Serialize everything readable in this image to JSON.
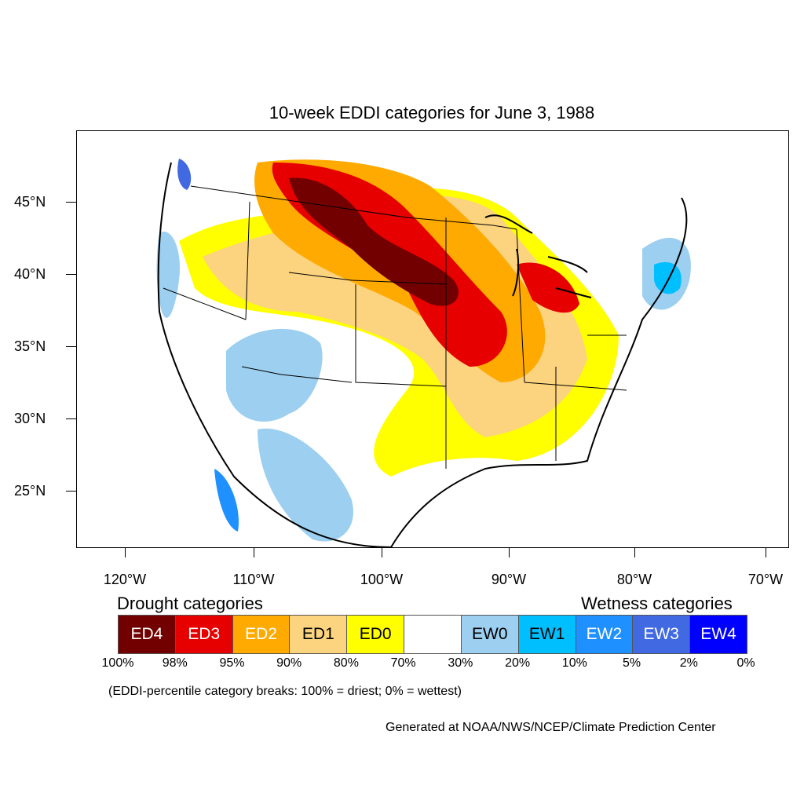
{
  "title": "10-week EDDI categories for June 3, 1988",
  "map": {
    "lat_labels": [
      "45°N",
      "40°N",
      "35°N",
      "30°N",
      "25°N"
    ],
    "lon_labels": [
      "120°W",
      "110°W",
      "100°W",
      "90°W",
      "80°W",
      "70°W"
    ],
    "lat_range": [
      21,
      49.5
    ],
    "lon_range": [
      -124,
      -68
    ]
  },
  "legend": {
    "drought_heading": "Drought categories",
    "wetness_heading": "Wetness categories",
    "categories": [
      {
        "label": "ED4",
        "color": "#730000",
        "text_color": "#ffffff"
      },
      {
        "label": "ED3",
        "color": "#e60000",
        "text_color": "#ffffff"
      },
      {
        "label": "ED2",
        "color": "#ffaa00",
        "text_color": "#ffffff"
      },
      {
        "label": "ED1",
        "color": "#fcd37f",
        "text_color": "#000000"
      },
      {
        "label": "ED0",
        "color": "#ffff00",
        "text_color": "#000000"
      },
      {
        "label": "",
        "color": "#ffffff",
        "text_color": "#000000"
      },
      {
        "label": "EW0",
        "color": "#9ccff0",
        "text_color": "#000000"
      },
      {
        "label": "EW1",
        "color": "#00bfff",
        "text_color": "#000000"
      },
      {
        "label": "EW2",
        "color": "#1e90ff",
        "text_color": "#ffffff"
      },
      {
        "label": "EW3",
        "color": "#4169e1",
        "text_color": "#ffffff"
      },
      {
        "label": "EW4",
        "color": "#0000ff",
        "text_color": "#ffffff"
      }
    ],
    "breaks": [
      "100%",
      "98%",
      "95%",
      "90%",
      "80%",
      "70%",
      "30%",
      "20%",
      "10%",
      "5%",
      "2%",
      "0%"
    ],
    "note": "(EDDI-percentile category breaks: 100% = driest; 0% = wettest)"
  },
  "credit": "Generated at NOAA/NWS/NCEP/Climate Prediction Center"
}
